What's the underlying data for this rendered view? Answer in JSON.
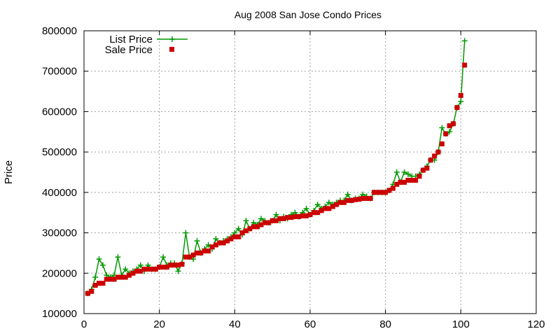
{
  "chart_data": {
    "type": "line",
    "title": "Aug 2008 San Jose Condo Prices",
    "xlabel": "",
    "ylabel": "Price",
    "xlim": [
      0,
      120
    ],
    "ylim": [
      100000,
      800000
    ],
    "xticks": [
      0,
      20,
      40,
      60,
      80,
      100,
      120
    ],
    "yticks": [
      100000,
      200000,
      300000,
      400000,
      500000,
      600000,
      700000,
      800000
    ],
    "grid": true,
    "legend_position": "top-left",
    "series": [
      {
        "name": "List Price",
        "style": "line+plus",
        "color": "#009900",
        "x": [
          1,
          2,
          3,
          4,
          5,
          6,
          7,
          8,
          9,
          10,
          11,
          12,
          13,
          14,
          15,
          16,
          17,
          18,
          19,
          20,
          21,
          22,
          23,
          24,
          25,
          26,
          27,
          28,
          29,
          30,
          31,
          32,
          33,
          34,
          35,
          36,
          37,
          38,
          39,
          40,
          41,
          42,
          43,
          44,
          45,
          46,
          47,
          48,
          49,
          50,
          51,
          52,
          53,
          54,
          55,
          56,
          57,
          58,
          59,
          60,
          61,
          62,
          63,
          64,
          65,
          66,
          67,
          68,
          69,
          70,
          71,
          72,
          73,
          74,
          75,
          76,
          77,
          78,
          79,
          80,
          81,
          82,
          83,
          84,
          85,
          86,
          87,
          88,
          89,
          90,
          91,
          92,
          93,
          94,
          95,
          96,
          97,
          98,
          99,
          100,
          101
        ],
        "y": [
          150000,
          160000,
          190000,
          235000,
          220000,
          195000,
          190000,
          195000,
          240000,
          195000,
          210000,
          200000,
          205000,
          210000,
          220000,
          205000,
          220000,
          210000,
          210000,
          215000,
          240000,
          220000,
          225000,
          225000,
          205000,
          225000,
          300000,
          240000,
          235000,
          280000,
          250000,
          260000,
          270000,
          260000,
          285000,
          275000,
          280000,
          285000,
          290000,
          300000,
          310000,
          295000,
          330000,
          310000,
          325000,
          320000,
          335000,
          330000,
          325000,
          330000,
          345000,
          330000,
          340000,
          335000,
          345000,
          350000,
          340000,
          350000,
          360000,
          345000,
          355000,
          370000,
          360000,
          365000,
          375000,
          370000,
          375000,
          380000,
          380000,
          395000,
          380000,
          385000,
          385000,
          395000,
          390000,
          385000,
          400000,
          400000,
          400000,
          400000,
          405000,
          420000,
          450000,
          425000,
          450000,
          445000,
          440000,
          440000,
          445000,
          455000,
          465000,
          480000,
          480000,
          500000,
          560000,
          545000,
          550000,
          570000,
          610000,
          625000,
          775000
        ]
      },
      {
        "name": "Sale Price",
        "style": "squares",
        "color": "#cc0000",
        "x": [
          1,
          2,
          3,
          4,
          5,
          6,
          7,
          8,
          9,
          10,
          11,
          12,
          13,
          14,
          15,
          16,
          17,
          18,
          19,
          20,
          21,
          22,
          23,
          24,
          25,
          26,
          27,
          28,
          29,
          30,
          31,
          32,
          33,
          34,
          35,
          36,
          37,
          38,
          39,
          40,
          41,
          42,
          43,
          44,
          45,
          46,
          47,
          48,
          49,
          50,
          51,
          52,
          53,
          54,
          55,
          56,
          57,
          58,
          59,
          60,
          61,
          62,
          63,
          64,
          65,
          66,
          67,
          68,
          69,
          70,
          71,
          72,
          73,
          74,
          75,
          76,
          77,
          78,
          79,
          80,
          81,
          82,
          83,
          84,
          85,
          86,
          87,
          88,
          89,
          90,
          91,
          92,
          93,
          94,
          95,
          96,
          97,
          98,
          99,
          100,
          101
        ],
        "y": [
          150000,
          155000,
          170000,
          175000,
          175000,
          185000,
          185000,
          185000,
          190000,
          190000,
          190000,
          195000,
          200000,
          205000,
          205000,
          210000,
          210000,
          210000,
          210000,
          215000,
          215000,
          215000,
          220000,
          220000,
          220000,
          222000,
          240000,
          240000,
          245000,
          250000,
          250000,
          255000,
          255000,
          265000,
          270000,
          275000,
          275000,
          280000,
          285000,
          290000,
          290000,
          300000,
          305000,
          310000,
          315000,
          315000,
          320000,
          325000,
          325000,
          330000,
          330000,
          335000,
          335000,
          338000,
          338000,
          340000,
          340000,
          342000,
          342000,
          345000,
          350000,
          350000,
          355000,
          360000,
          360000,
          365000,
          370000,
          375000,
          375000,
          380000,
          380000,
          382000,
          383000,
          385000,
          385000,
          385000,
          400000,
          400000,
          400000,
          400000,
          405000,
          410000,
          420000,
          425000,
          425000,
          430000,
          430000,
          430000,
          440000,
          455000,
          460000,
          480000,
          490000,
          500000,
          520000,
          545000,
          565000,
          570000,
          610000,
          640000,
          715000
        ]
      }
    ]
  }
}
